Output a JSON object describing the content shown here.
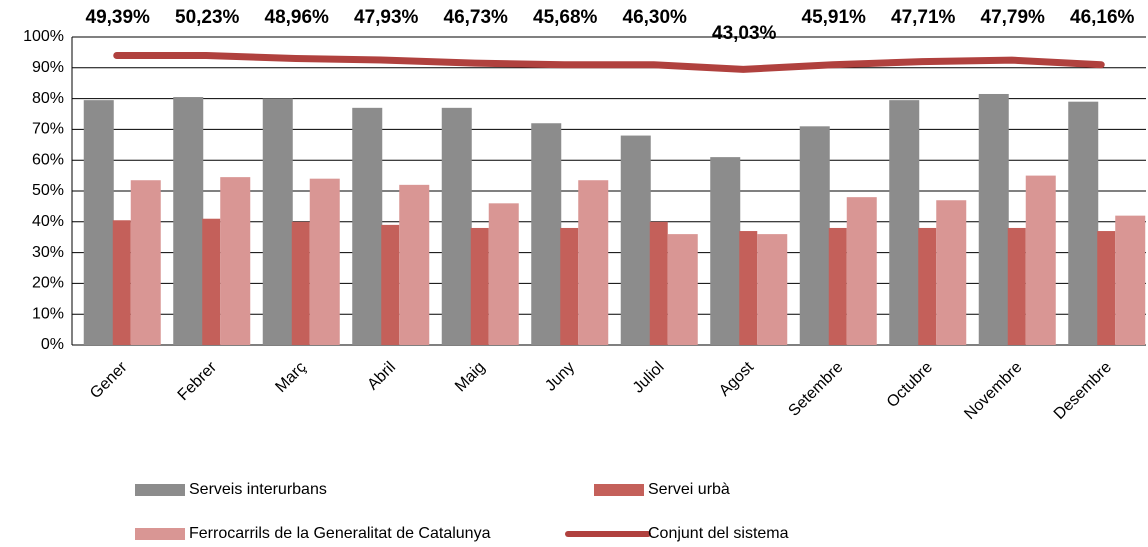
{
  "chart_data": {
    "type": "bar",
    "categories": [
      "Gener",
      "Febrer",
      "Març",
      "Abril",
      "Maig",
      "Juny",
      "Juliol",
      "Agost",
      "Setembre",
      "Octubre",
      "Novembre",
      "Desembre"
    ],
    "annotations": [
      "49,39%",
      "50,23%",
      "48,96%",
      "47,93%",
      "46,73%",
      "45,68%",
      "46,30%",
      "43,03%",
      "45,91%",
      "47,71%",
      "47,79%",
      "46,16%"
    ],
    "series": [
      {
        "name": "Serveis interurbans",
        "type": "bar",
        "color": "#8c8c8c",
        "values": [
          79.5,
          80.5,
          80,
          77,
          77,
          72,
          68,
          61,
          71,
          79.5,
          81.5,
          79
        ]
      },
      {
        "name": "Servei urbà",
        "type": "bar",
        "color": "#c4605a",
        "values": [
          40.5,
          41,
          40,
          39,
          38,
          38,
          40,
          37,
          38,
          38,
          38,
          37
        ]
      },
      {
        "name": "Ferrocarrils de la Generalitat de Catalunya",
        "type": "bar",
        "color": "#d99694",
        "values": [
          53.5,
          54.5,
          54,
          52,
          46,
          53.5,
          36,
          36,
          48,
          47,
          55,
          42
        ]
      },
      {
        "name": "Conjunt del sistema",
        "type": "line",
        "color": "#b0413e",
        "values": [
          94,
          94,
          93,
          92.5,
          91.5,
          91,
          91,
          89.5,
          91,
          92,
          92.5,
          91
        ]
      }
    ],
    "ylim": [
      0,
      100
    ],
    "yticks": [
      {
        "value": 0,
        "label": "0%"
      },
      {
        "value": 10,
        "label": "10%"
      },
      {
        "value": 20,
        "label": "20%"
      },
      {
        "value": 30,
        "label": "30%"
      },
      {
        "value": 40,
        "label": "40%"
      },
      {
        "value": 50,
        "label": "50%"
      },
      {
        "value": 60,
        "label": "60%"
      },
      {
        "value": 70,
        "label": "70%"
      },
      {
        "value": 80,
        "label": "80%"
      },
      {
        "value": 90,
        "label": "90%"
      },
      {
        "value": 100,
        "label": "100%"
      }
    ],
    "grid": true
  }
}
